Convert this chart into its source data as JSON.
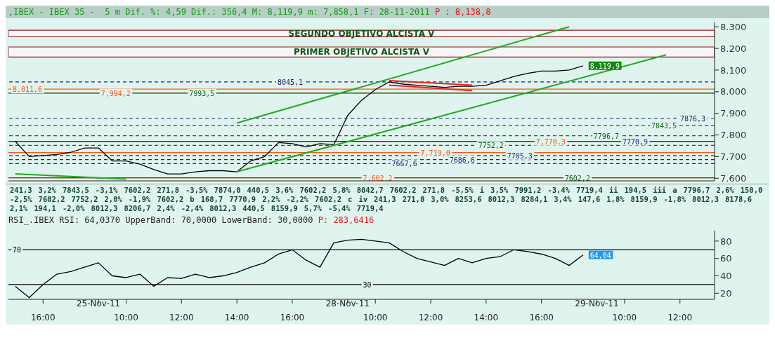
{
  "chart_data": [
    {
      "type": "line",
      "title": ",IBEX - IBEX 35 -  5 m Dif. %: 4,59 Dif.: 356,4 M: 8,119,9 m: 7,858,1 F: 28-11-2011",
      "subtitle": "P : 8,138,8",
      "categories": [
        null,
        null,
        null,
        null,
        null,
        null,
        null,
        null,
        null,
        null,
        null,
        null,
        null,
        null,
        null,
        null,
        null,
        null,
        null,
        null,
        null,
        null,
        null,
        null,
        null,
        null,
        null,
        null,
        null,
        null,
        null,
        null,
        null,
        null,
        null,
        null,
        null,
        null,
        null,
        null,
        null,
        null,
        null,
        null,
        null,
        null,
        null,
        null,
        null,
        null,
        null
      ],
      "series": [
        {
          "color": "#000000",
          "values": [
            7770,
            7700,
            7705,
            7710,
            7720,
            7740,
            7740,
            7680,
            7680,
            7665,
            7640,
            7620,
            7620,
            7630,
            7635,
            7635,
            7630,
            7680,
            7700,
            7765,
            7760,
            7745,
            7760,
            7755,
            7890,
            7960,
            8010,
            8045,
            8035,
            8030,
            8025,
            8020,
            8025,
            8025,
            8030,
            8050,
            8070,
            8085,
            8095,
            8095,
            8100,
            8119.9,
            null,
            null,
            null,
            null,
            null,
            null,
            null,
            null,
            null
          ],
          "value_labels": [
            null,
            null,
            null,
            null,
            null,
            null,
            null,
            null,
            null,
            null,
            null,
            null,
            null,
            null,
            null,
            null,
            null,
            null,
            null,
            null,
            null,
            null,
            null,
            null,
            null,
            null,
            null,
            null,
            null,
            null,
            null,
            null,
            null,
            null,
            null,
            null,
            null,
            null,
            null,
            null,
            null,
            "8,119,9",
            null,
            null,
            null,
            null,
            null,
            null,
            null,
            null,
            null
          ]
        },
        {
          "color": "#22aa22",
          "values": [
            null,
            null,
            null,
            null,
            null,
            null,
            null,
            null,
            null,
            null,
            null,
            null,
            null,
            null,
            null,
            null,
            7630,
            null,
            null,
            null,
            null,
            null,
            null,
            null,
            null,
            null,
            null,
            null,
            null,
            null,
            null,
            null,
            null,
            null,
            null,
            null,
            null,
            null,
            null,
            null,
            null,
            null,
            null,
            null,
            null,
            null,
            null,
            8170,
            null,
            null,
            null
          ]
        },
        {
          "color": "#22aa22",
          "values": [
            null,
            null,
            null,
            null,
            null,
            null,
            null,
            null,
            null,
            null,
            null,
            null,
            null,
            null,
            null,
            null,
            7855,
            null,
            null,
            null,
            null,
            null,
            null,
            null,
            null,
            null,
            null,
            null,
            null,
            null,
            null,
            null,
            null,
            null,
            null,
            null,
            null,
            null,
            null,
            null,
            8300,
            null,
            null,
            null,
            null,
            null,
            null,
            null,
            null,
            null,
            null
          ]
        },
        {
          "color": "#22aa22",
          "values": [
            7620,
            null,
            null,
            null,
            null,
            null,
            null,
            null,
            7596,
            null,
            null,
            null,
            null,
            null,
            null,
            null,
            null,
            null,
            null,
            null,
            null,
            null,
            null,
            null,
            null,
            null,
            null,
            null,
            null,
            null,
            null,
            null,
            null,
            null,
            null,
            null,
            null,
            null,
            null,
            null,
            null,
            null,
            null,
            null,
            null,
            null,
            null,
            null,
            null,
            null,
            null
          ]
        },
        {
          "color": "#ee2222",
          "values": [
            null,
            null,
            null,
            null,
            null,
            null,
            null,
            null,
            null,
            null,
            null,
            null,
            null,
            null,
            null,
            null,
            null,
            null,
            null,
            null,
            null,
            null,
            null,
            null,
            null,
            null,
            null,
            8051,
            null,
            null,
            null,
            null,
            null,
            8030,
            null,
            null,
            null,
            null,
            null,
            null,
            null,
            null,
            null,
            null,
            null,
            null,
            null,
            null,
            null,
            null,
            null
          ]
        },
        {
          "color": "#ee2222",
          "values": [
            null,
            null,
            null,
            null,
            null,
            null,
            null,
            null,
            null,
            null,
            null,
            null,
            null,
            null,
            null,
            null,
            null,
            null,
            null,
            null,
            null,
            null,
            null,
            null,
            null,
            null,
            null,
            8030,
            null,
            null,
            null,
            null,
            null,
            8005,
            null,
            null,
            null,
            null,
            null,
            null,
            null,
            null,
            null,
            null,
            null,
            null,
            null,
            null,
            null,
            null,
            null
          ]
        }
      ],
      "ylim": [
        7588,
        8320
      ],
      "yticks": [
        {
          "value": 7600,
          "label": "7.600"
        },
        {
          "value": 7700,
          "label": "7.700"
        },
        {
          "value": 7800,
          "label": "7.800"
        },
        {
          "value": 7900,
          "label": "7.900"
        },
        {
          "value": 8000,
          "label": "8.000"
        },
        {
          "value": 8100,
          "label": "8.100"
        },
        {
          "value": 8200,
          "label": "8.200"
        },
        {
          "value": 8300,
          "label": "8.300"
        }
      ],
      "tick_labels": "y",
      "ref_lines": [
        {
          "axis": "y",
          "value": 8011.6,
          "label": "8,011,6",
          "color": "#ff5511"
        },
        {
          "axis": "y",
          "value": 7994.2,
          "label": "7,994,2",
          "color": "#ff5511"
        },
        {
          "axis": "y",
          "value": 7993.5,
          "label": "7993,5",
          "color": "#116611"
        },
        {
          "axis": "y",
          "value": 8045.1,
          "label": "8045,1",
          "color": "#222266",
          "line_style": "dashed"
        },
        {
          "axis": "y",
          "value": 7602.2,
          "label": "7,602,2",
          "color": "#ff5511"
        },
        {
          "axis": "y",
          "value": 7667.6,
          "label": "7667,6",
          "color": "#222288",
          "line_style": "dashed"
        },
        {
          "axis": "y",
          "value": 7719.0,
          "label": "7,719,0",
          "color": "#ff5511"
        },
        {
          "axis": "y",
          "value": 7686.6,
          "label": "7686,6",
          "color": "#222288",
          "line_style": "dashed"
        },
        {
          "axis": "y",
          "value": 7752.2,
          "label": "7752,2",
          "color": "#116611",
          "line_style": "dashed"
        },
        {
          "axis": "y",
          "value": 7705.3,
          "label": "7705,3",
          "color": "#222288",
          "line_style": "dashed"
        },
        {
          "axis": "y",
          "value": 7770.3,
          "label": "7,770,3",
          "color": "#ff5511"
        },
        {
          "axis": "y",
          "value": 7602.2,
          "label": "7602,2",
          "color": "#116611"
        },
        {
          "axis": "y",
          "value": 7796.7,
          "label": "7796,7",
          "color": "#116611",
          "line_style": "dashed"
        },
        {
          "axis": "y",
          "value": 7770.9,
          "label": "7770,9",
          "color": "#222288"
        },
        {
          "axis": "y",
          "value": 7843.5,
          "label": "7843,5",
          "color": "#116611",
          "line_style": "dashed"
        },
        {
          "axis": "y",
          "value": 7876.3,
          "label": "7876,3",
          "color": "#222266",
          "line_style": "dashed"
        }
      ],
      "bands": [
        {
          "axis": "y",
          "from": 8253.6,
          "to": 8284.1,
          "color": "#8b1a1a",
          "label": "SEGUNDO OBJETIVO ALCISTA V"
        },
        {
          "axis": "y",
          "from": 8159.9,
          "to": 8206.7,
          "color": "#8b1a1a",
          "label": "PRIMER OBJETIVO ALCISTA V"
        }
      ],
      "annotations": [
        "241,3",
        "3,2%",
        "7843,5",
        "-3,1%",
        "7602,2",
        "271,8",
        "-3,5%",
        "7874,0",
        "440,5",
        "3,6%",
        "7602,2",
        "5,8%",
        "8042,7",
        "7602,2",
        "271,8",
        "-5,5%",
        "i",
        "3,5%",
        "7991,2",
        "-3,4%",
        "7719,4",
        "ii",
        "194,5",
        "iii",
        "a",
        "7796,7",
        "2,6%",
        "150,0",
        "-2,5%",
        "7602,2",
        "7752,2",
        "2,0%",
        "-1,9%",
        "7602,2",
        "b",
        "168,7",
        "7770,9",
        "2,2%",
        "-2,2%",
        "7602,2",
        "c",
        "iv",
        "241,3",
        "271,8",
        "3,0%",
        "8253,6",
        "8012,3",
        "8284,1",
        "3,4%",
        "147,6",
        "1,8%",
        "8159,9",
        "-1,8%",
        "8012,3",
        "8178,6",
        "2,1%",
        "194,1",
        "-2,0%",
        "8012,3",
        "8206,7",
        "2,4%",
        "-2,4%",
        "8012,3",
        "440,5",
        "8159,9",
        "5,7%",
        "-5,4%",
        "7719,4"
      ]
    },
    {
      "type": "line",
      "title": "RSI_.IBEX RSI: 64,0370 UpperBand: 70,0000 LowerBand: 30,0000",
      "subtitle": "P: 283,6416",
      "categories": [
        null,
        null,
        "16:00",
        null,
        null,
        null,
        "25-Nov-11",
        null,
        "10:00",
        null,
        null,
        null,
        "12:00",
        null,
        null,
        null,
        "14:00",
        null,
        null,
        null,
        "16:00",
        null,
        null,
        null,
        "28-Nov-11",
        null,
        "10:00",
        null,
        null,
        null,
        "12:00",
        null,
        null,
        null,
        "14:00",
        null,
        null,
        null,
        "16:00",
        null,
        null,
        null,
        "29-Nov-11",
        null,
        "10:00",
        null,
        null,
        null,
        "12:00",
        null,
        null
      ],
      "series": [
        {
          "color": "#000000",
          "values": [
            28,
            15,
            30,
            42,
            45,
            50,
            55,
            40,
            38,
            42,
            28,
            38,
            37,
            42,
            38,
            40,
            44,
            50,
            55,
            65,
            70,
            58,
            50,
            78,
            81,
            82,
            80,
            78,
            68,
            60,
            56,
            52,
            60,
            55,
            60,
            62,
            70,
            68,
            65,
            60,
            52,
            64.04,
            null,
            null,
            null,
            null,
            null,
            null,
            null,
            null,
            null
          ],
          "value_labels": [
            null,
            null,
            null,
            null,
            null,
            null,
            null,
            null,
            null,
            null,
            null,
            null,
            null,
            null,
            null,
            null,
            null,
            null,
            null,
            null,
            null,
            null,
            null,
            null,
            null,
            null,
            null,
            null,
            null,
            null,
            null,
            null,
            null,
            null,
            null,
            null,
            null,
            null,
            null,
            null,
            null,
            "64,04",
            null,
            null,
            null,
            null,
            null,
            null,
            null,
            null,
            null
          ]
        }
      ],
      "ylim": [
        13,
        92
      ],
      "yticks": [
        20,
        40,
        60,
        80
      ],
      "ref_lines": [
        {
          "axis": "y",
          "value": 70,
          "label": "70",
          "color": "#000000"
        },
        {
          "axis": "y",
          "value": 30,
          "label": "30",
          "color": "#000000"
        }
      ]
    }
  ]
}
